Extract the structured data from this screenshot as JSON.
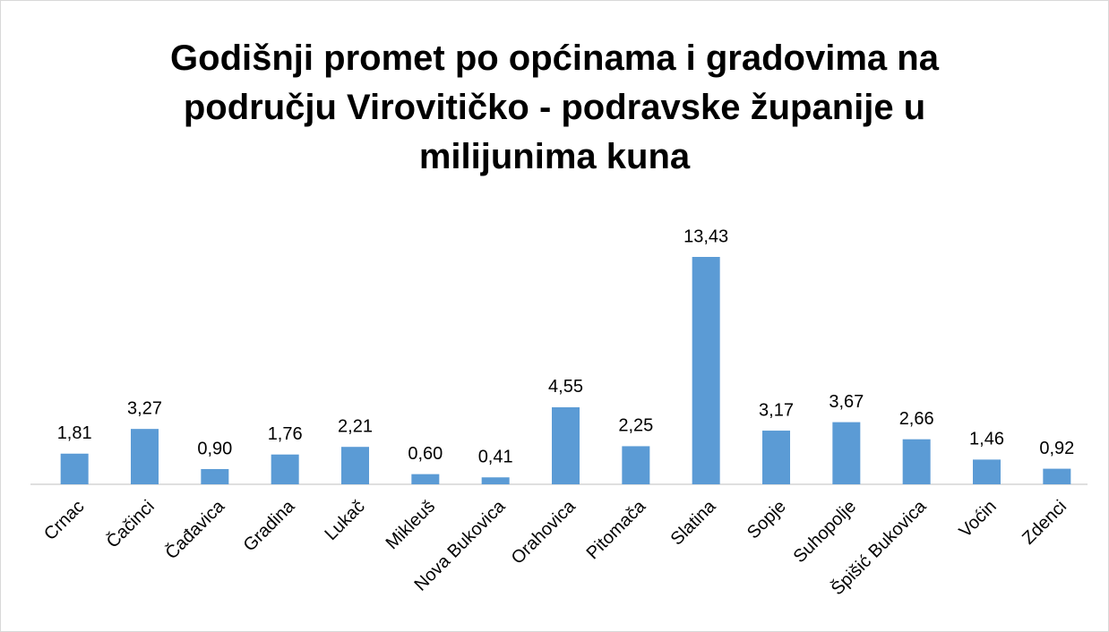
{
  "chart_data": {
    "type": "bar",
    "title": "Godišnji promet po općinama i gradovima na području Virovitičko - podravske županije u milijunima kuna",
    "categories": [
      "Crnac",
      "Čačinci",
      "Čađavica",
      "Gradina",
      "Lukač",
      "Mikleuš",
      "Nova Bukovica",
      "Orahovica",
      "Pitomača",
      "Slatina",
      "Sopje",
      "Suhopolje",
      "Špišić Bukovica",
      "Voćin",
      "Zdenci"
    ],
    "values": [
      1.81,
      3.27,
      0.9,
      1.76,
      2.21,
      0.6,
      0.41,
      4.55,
      2.25,
      13.43,
      3.17,
      3.67,
      2.66,
      1.46,
      0.92
    ],
    "value_labels": [
      "1,81",
      "3,27",
      "0,90",
      "1,76",
      "2,21",
      "0,60",
      "0,41",
      "4,55",
      "2,25",
      "13,43",
      "3,17",
      "3,67",
      "2,66",
      "1,46",
      "0,92"
    ],
    "color": "#5b9bd5"
  }
}
